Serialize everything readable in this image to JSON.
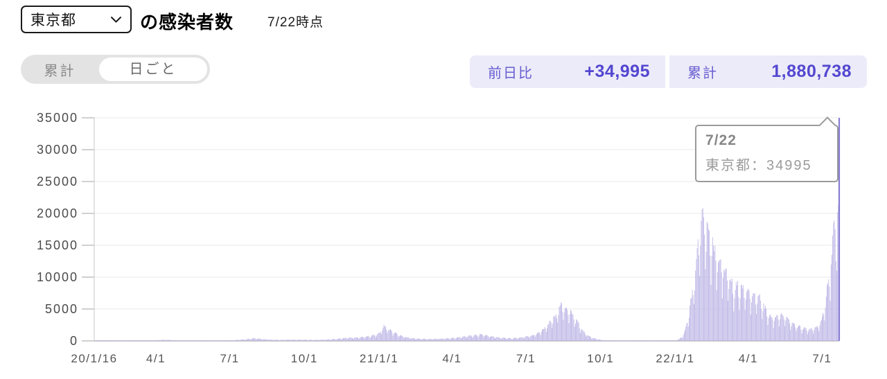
{
  "header": {
    "region_selector": {
      "value": "東京都"
    },
    "title_suffix": "の感染者数",
    "as_of": "7/22時点"
  },
  "toggle": {
    "options": [
      {
        "label": "累計",
        "active": false
      },
      {
        "label": "日ごと",
        "active": true
      }
    ]
  },
  "stats": {
    "daily_change": {
      "label": "前日比",
      "value": "+34,995"
    },
    "cumulative": {
      "label": "累計",
      "value": "1,880,738"
    }
  },
  "tooltip": {
    "date": "7/22",
    "label": "東京都",
    "value": "34995",
    "text": "東京都：34995"
  },
  "colors": {
    "bar": "#bdb6e6",
    "bar_highlight": "#857bd2",
    "grid": "#e8e8e8",
    "axis": "#b5b5b5",
    "axis_line": "#d0d0d0",
    "accent_text": "#5b4fd2",
    "accent_bg": "#ecebf9",
    "toggle_bg": "#e3e3e3"
  },
  "chart_data": {
    "type": "bar",
    "title": "東京都の感染者数（日ごと）",
    "xlabel": "",
    "ylabel": "",
    "x_start": "2020/1/16",
    "x_end": "2022/7/22",
    "days_total": 918,
    "ylim": [
      0,
      35000
    ],
    "yticks": [
      0,
      5000,
      10000,
      15000,
      20000,
      25000,
      30000,
      35000
    ],
    "x_ticks": [
      {
        "day": 0,
        "label": "20/1/16"
      },
      {
        "day": 76,
        "label": "4/1"
      },
      {
        "day": 167,
        "label": "7/1"
      },
      {
        "day": 259,
        "label": "10/1"
      },
      {
        "day": 351,
        "label": "21/1/1"
      },
      {
        "day": 441,
        "label": "4/1"
      },
      {
        "day": 532,
        "label": "7/1"
      },
      {
        "day": 624,
        "label": "10/1"
      },
      {
        "day": 716,
        "label": "22/1/1"
      },
      {
        "day": 806,
        "label": "4/1"
      },
      {
        "day": 897,
        "label": "7/1"
      }
    ],
    "grid": true,
    "legend": false,
    "highlight": {
      "day": 918,
      "date": "7/22",
      "value": 34995
    },
    "control_points": [
      [
        0,
        2
      ],
      [
        20,
        1
      ],
      [
        40,
        3
      ],
      [
        55,
        8
      ],
      [
        70,
        70
      ],
      [
        80,
        130
      ],
      [
        87,
        170
      ],
      [
        92,
        160
      ],
      [
        100,
        80
      ],
      [
        110,
        30
      ],
      [
        120,
        12
      ],
      [
        130,
        15
      ],
      [
        140,
        28
      ],
      [
        150,
        35
      ],
      [
        160,
        55
      ],
      [
        170,
        105
      ],
      [
        180,
        190
      ],
      [
        190,
        290
      ],
      [
        197,
        420
      ],
      [
        203,
        350
      ],
      [
        210,
        250
      ],
      [
        220,
        180
      ],
      [
        229,
        160
      ],
      [
        240,
        190
      ],
      [
        250,
        175
      ],
      [
        259,
        185
      ],
      [
        268,
        145
      ],
      [
        278,
        165
      ],
      [
        290,
        230
      ],
      [
        300,
        330
      ],
      [
        310,
        470
      ],
      [
        320,
        510
      ],
      [
        330,
        570
      ],
      [
        340,
        780
      ],
      [
        347,
        950
      ],
      [
        352,
        1280
      ],
      [
        357,
        2350
      ],
      [
        362,
        1850
      ],
      [
        368,
        1450
      ],
      [
        375,
        950
      ],
      [
        382,
        630
      ],
      [
        390,
        450
      ],
      [
        400,
        340
      ],
      [
        410,
        290
      ],
      [
        420,
        320
      ],
      [
        430,
        370
      ],
      [
        441,
        430
      ],
      [
        450,
        570
      ],
      [
        460,
        740
      ],
      [
        470,
        920
      ],
      [
        478,
        1020
      ],
      [
        485,
        830
      ],
      [
        493,
        620
      ],
      [
        500,
        510
      ],
      [
        508,
        430
      ],
      [
        516,
        400
      ],
      [
        524,
        500
      ],
      [
        532,
        650
      ],
      [
        539,
        830
      ],
      [
        546,
        1150
      ],
      [
        553,
        1750
      ],
      [
        560,
        2700
      ],
      [
        567,
        3650
      ],
      [
        572,
        4700
      ],
      [
        575,
        5700
      ],
      [
        578,
        5250
      ],
      [
        582,
        4950
      ],
      [
        588,
        4550
      ],
      [
        593,
        3350
      ],
      [
        598,
        2350
      ],
      [
        603,
        1450
      ],
      [
        608,
        850
      ],
      [
        613,
        530
      ],
      [
        618,
        330
      ],
      [
        624,
        175
      ],
      [
        630,
        95
      ],
      [
        638,
        48
      ],
      [
        645,
        28
      ],
      [
        655,
        22
      ],
      [
        665,
        17
      ],
      [
        675,
        15
      ],
      [
        685,
        16
      ],
      [
        695,
        20
      ],
      [
        705,
        32
      ],
      [
        716,
        75
      ],
      [
        721,
        290
      ],
      [
        725,
        750
      ],
      [
        728,
        1600
      ],
      [
        731,
        3200
      ],
      [
        734,
        5100
      ],
      [
        737,
        7600
      ],
      [
        740,
        9800
      ],
      [
        743,
        13000
      ],
      [
        746,
        17000
      ],
      [
        749,
        19800
      ],
      [
        752,
        18600
      ],
      [
        755,
        17200
      ],
      [
        758,
        16000
      ],
      [
        762,
        14800
      ],
      [
        766,
        13400
      ],
      [
        770,
        12600
      ],
      [
        775,
        11600
      ],
      [
        780,
        10200
      ],
      [
        785,
        8800
      ],
      [
        789,
        8100
      ],
      [
        793,
        8400
      ],
      [
        797,
        8100
      ],
      [
        801,
        7600
      ],
      [
        806,
        7700
      ],
      [
        810,
        7300
      ],
      [
        814,
        6700
      ],
      [
        818,
        6900
      ],
      [
        822,
        6100
      ],
      [
        826,
        5100
      ],
      [
        830,
        4300
      ],
      [
        834,
        3800
      ],
      [
        838,
        3500
      ],
      [
        842,
        3700
      ],
      [
        846,
        3900
      ],
      [
        850,
        3900
      ],
      [
        854,
        3400
      ],
      [
        858,
        2900
      ],
      [
        862,
        2600
      ],
      [
        867,
        2300
      ],
      [
        871,
        2050
      ],
      [
        875,
        1950
      ],
      [
        879,
        1850
      ],
      [
        883,
        1800
      ],
      [
        887,
        1900
      ],
      [
        891,
        2200
      ],
      [
        894,
        2700
      ],
      [
        897,
        3500
      ],
      [
        899,
        4400
      ],
      [
        901,
        6000
      ],
      [
        903,
        8000
      ],
      [
        905,
        9000
      ],
      [
        907,
        10500
      ],
      [
        909,
        13500
      ],
      [
        910,
        16500
      ],
      [
        911,
        18500
      ],
      [
        912,
        18900
      ],
      [
        913,
        17500
      ],
      [
        914,
        12500
      ],
      [
        915,
        11000
      ],
      [
        916,
        20200
      ],
      [
        917,
        21300
      ],
      [
        918,
        34995
      ]
    ]
  }
}
